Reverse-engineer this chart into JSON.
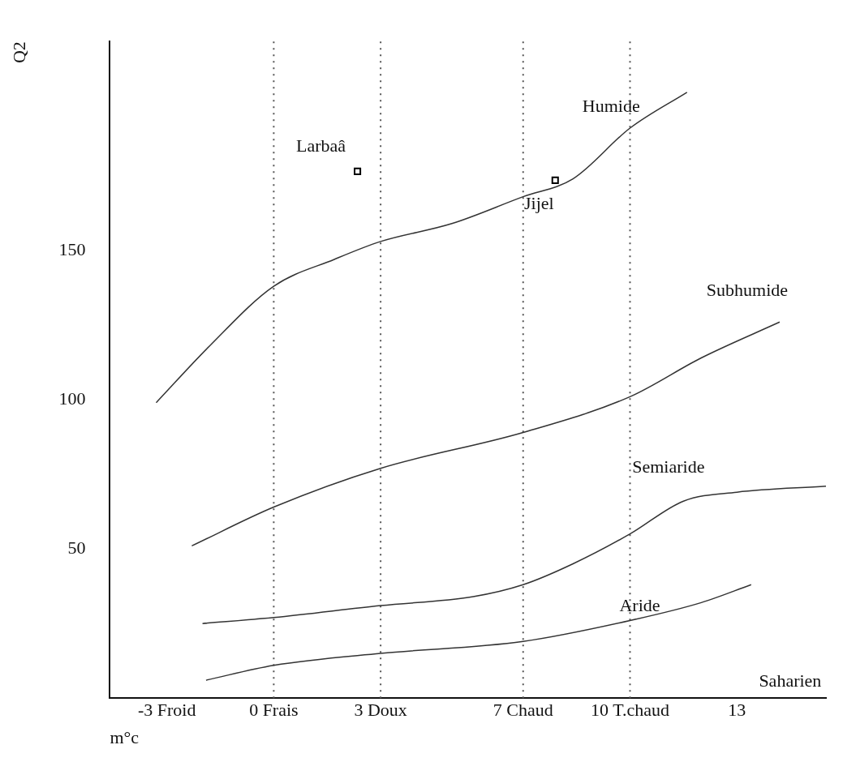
{
  "chart_data": {
    "type": "line",
    "xlabel": "m°c",
    "ylabel": "Q2",
    "xlim": [
      -4.6,
      15.5
    ],
    "ylim": [
      0,
      220
    ],
    "xticks": [
      {
        "value": -3,
        "label": "-3 Froid"
      },
      {
        "value": 0,
        "label": "0 Frais"
      },
      {
        "value": 3,
        "label": "3 Doux"
      },
      {
        "value": 7,
        "label": "7 Chaud"
      },
      {
        "value": 10,
        "label": "10 T.chaud"
      },
      {
        "value": 13,
        "label": "13"
      }
    ],
    "yticks": [
      50,
      100,
      150
    ],
    "grid": false,
    "legend": false,
    "marker": "none",
    "line_style": "solid",
    "series": [
      {
        "type": "line",
        "color": "#333333",
        "x": [
          -3.3,
          -1.8,
          0,
          1.7,
          3,
          5,
          7,
          8.4,
          10,
          11.6
        ],
        "values": [
          99,
          118,
          138,
          147,
          153,
          159,
          168,
          174,
          191,
          203
        ]
      },
      {
        "type": "line",
        "color": "#333333",
        "x": [
          -2.3,
          0,
          3,
          7,
          10,
          12,
          14.2
        ],
        "values": [
          51,
          64,
          77,
          89,
          101,
          114,
          126
        ]
      },
      {
        "type": "line",
        "color": "#333333",
        "x": [
          -2,
          0,
          3,
          5.6,
          7,
          8.4,
          10,
          11.5,
          13,
          15.5
        ],
        "values": [
          25,
          27,
          31,
          34,
          38,
          45,
          55,
          66,
          69,
          71
        ]
      },
      {
        "type": "line",
        "color": "#333333",
        "x": [
          -1.9,
          0,
          3,
          7,
          10,
          12,
          13.4
        ],
        "values": [
          6,
          11,
          15,
          19,
          26,
          32,
          38
        ]
      },
      {
        "type": "scatter",
        "marker": "square",
        "name": "Larbaâ",
        "color": "#000000",
        "x": [
          2.35
        ],
        "values": [
          176.5
        ]
      },
      {
        "type": "scatter",
        "marker": "square",
        "name": "Jijel",
        "color": "#000000",
        "x": [
          7.9
        ],
        "values": [
          173.5
        ]
      }
    ],
    "ref_lines": [
      {
        "axis": "x",
        "value": 0,
        "line_style": "dotted",
        "color": "#555555"
      },
      {
        "axis": "x",
        "value": 3,
        "line_style": "dotted",
        "color": "#555555"
      },
      {
        "axis": "x",
        "value": 7,
        "line_style": "dotted",
        "color": "#555555"
      },
      {
        "axis": "x",
        "value": 10,
        "line_style": "dotted",
        "color": "#555555"
      }
    ],
    "annotations": [
      "Humide",
      "Subhumide",
      "Semiaride",
      "Aride",
      "Saharien"
    ]
  }
}
